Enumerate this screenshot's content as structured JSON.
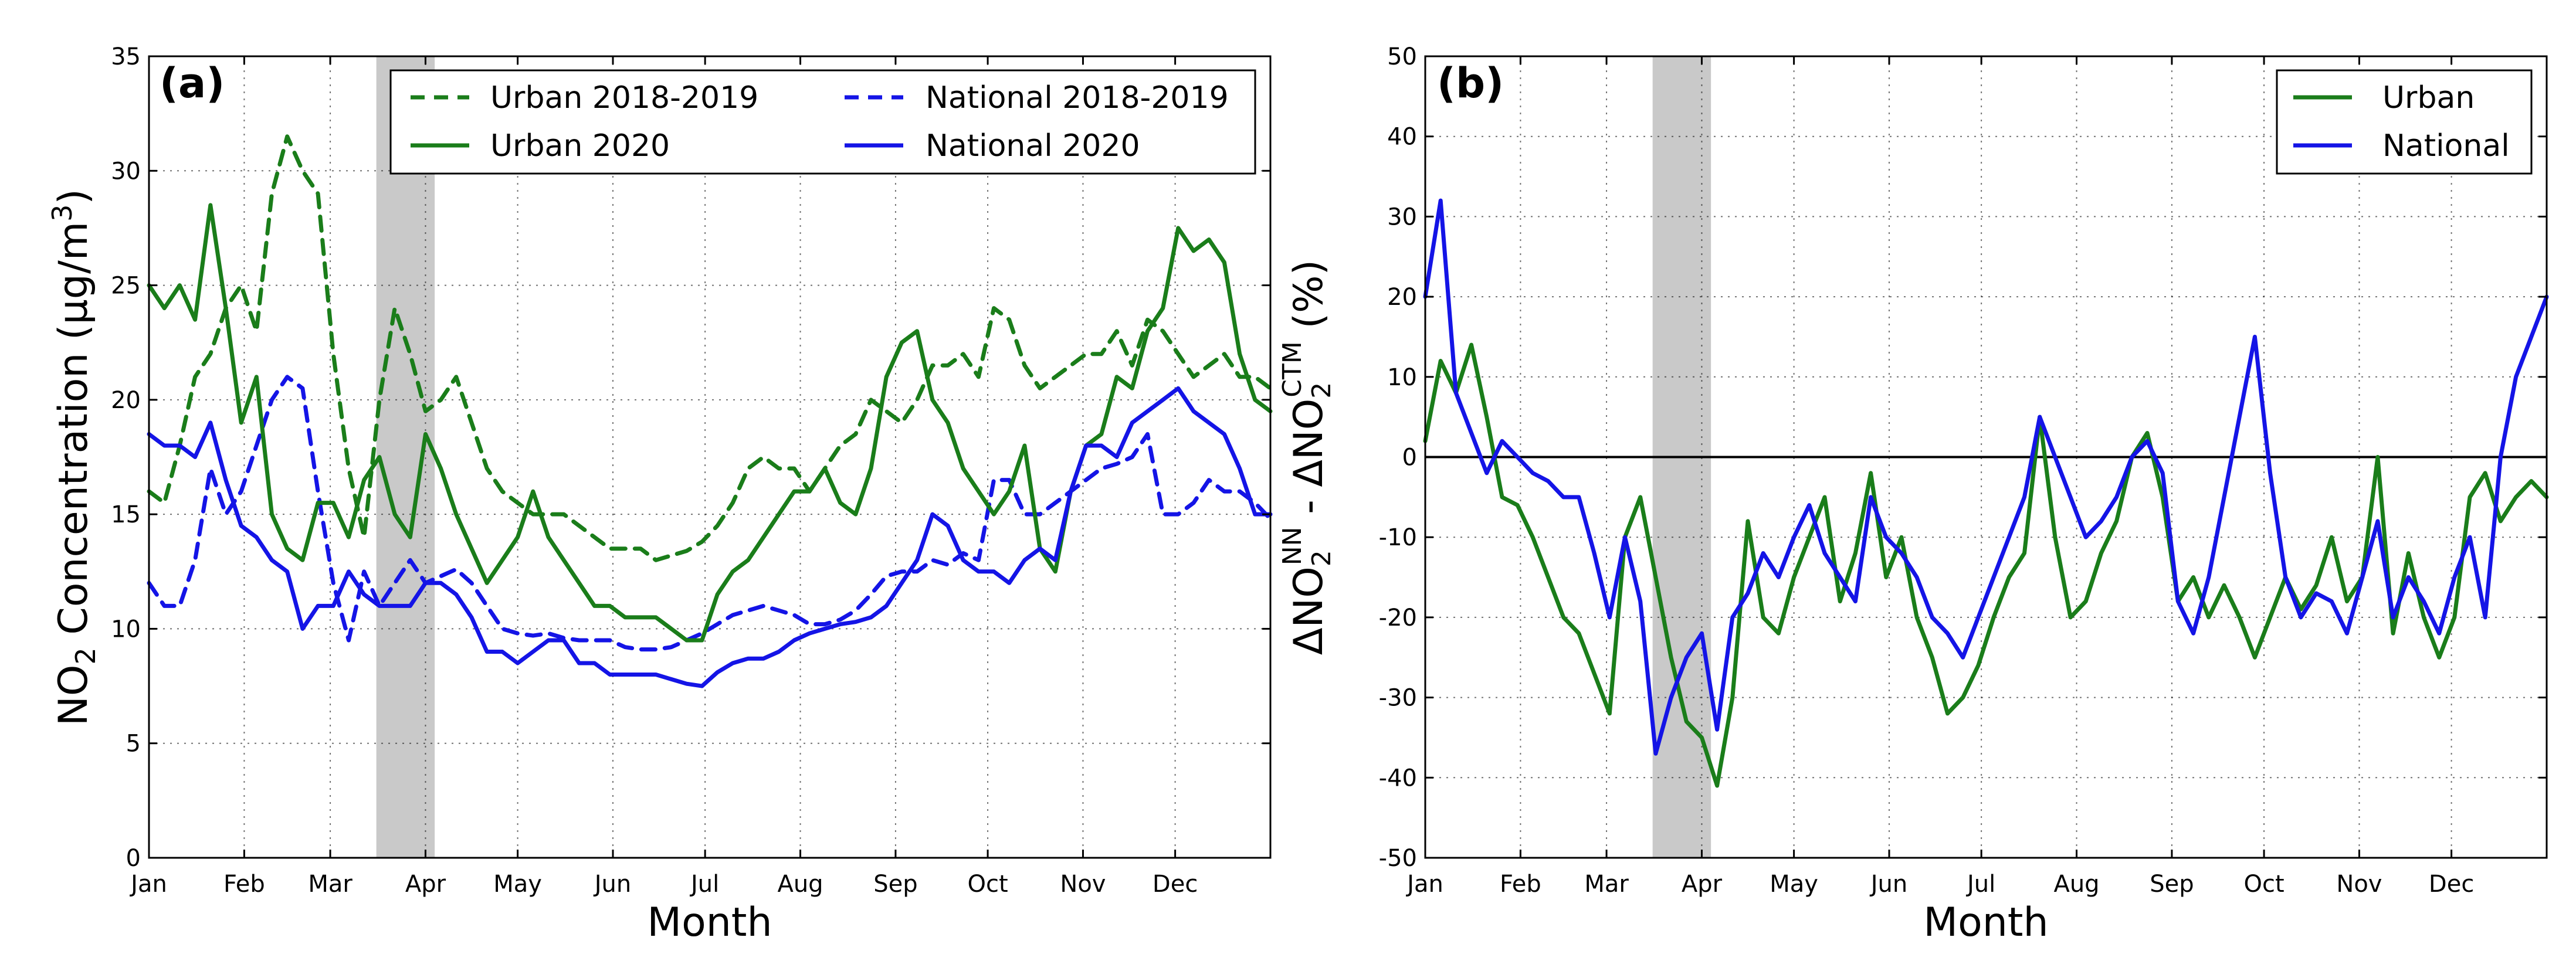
{
  "colors": {
    "urban": "#1a7d1a",
    "national": "#1414e6",
    "shade": "#c9c9c9",
    "zero_line": "#000000"
  },
  "chart_data": [
    {
      "type": "line",
      "panel_label": "(a)",
      "xlabel": "Month",
      "ylabel_parts": {
        "pre": "NO",
        "sub": "2",
        "mid": " Concentration (µg/m",
        "sup": "3",
        "post": ")"
      },
      "months": [
        "Jan",
        "Feb",
        "Mar",
        "Apr",
        "May",
        "Jun",
        "Jul",
        "Aug",
        "Sep",
        "Oct",
        "Nov",
        "Dec"
      ],
      "xlim": [
        0,
        365
      ],
      "ylim": [
        0,
        35
      ],
      "yticks": [
        0,
        5,
        10,
        15,
        20,
        25,
        30,
        35
      ],
      "shaded_period": [
        74,
        93
      ],
      "series": [
        {
          "key": "urban_1819",
          "name": "Urban 2018-2019",
          "color_key": "urban",
          "dashed": true,
          "x": [
            0,
            5,
            10,
            15,
            20,
            25,
            30,
            35,
            40,
            45,
            50,
            55,
            60,
            65,
            70,
            75,
            80,
            85,
            90,
            95,
            100,
            105,
            110,
            115,
            120,
            125,
            130,
            135,
            140,
            145,
            150,
            155,
            160,
            165,
            170,
            175,
            180,
            185,
            190,
            195,
            200,
            205,
            210,
            215,
            220,
            225,
            230,
            235,
            240,
            245,
            250,
            255,
            260,
            265,
            270,
            275,
            280,
            285,
            290,
            295,
            300,
            305,
            310,
            315,
            320,
            325,
            330,
            335,
            340,
            345,
            350,
            355,
            360,
            365
          ],
          "y": [
            16,
            15.5,
            18,
            21,
            22,
            24,
            25,
            23,
            29,
            31.5,
            30,
            29,
            22,
            17,
            14,
            20,
            24,
            22,
            19.5,
            20,
            21,
            19,
            17,
            16,
            15.5,
            15,
            15,
            15,
            14.5,
            14,
            13.5,
            13.5,
            13.5,
            13,
            13.2,
            13.4,
            13.8,
            14.5,
            15.5,
            17,
            17.5,
            17,
            17,
            16,
            17,
            18,
            18.5,
            20,
            19.5,
            19,
            20,
            21.5,
            21.5,
            22,
            21,
            24,
            23.5,
            21.5,
            20.5,
            21,
            21.5,
            22,
            22,
            23,
            21.5,
            23.5,
            23,
            22,
            21,
            21.5,
            22,
            21,
            21,
            20.5
          ]
        },
        {
          "key": "urban_2020",
          "name": "Urban 2020",
          "color_key": "urban",
          "dashed": false,
          "x": [
            0,
            5,
            10,
            15,
            20,
            25,
            30,
            35,
            40,
            45,
            50,
            55,
            60,
            65,
            70,
            75,
            80,
            85,
            90,
            95,
            100,
            105,
            110,
            115,
            120,
            125,
            130,
            135,
            140,
            145,
            150,
            155,
            160,
            165,
            170,
            175,
            180,
            185,
            190,
            195,
            200,
            205,
            210,
            215,
            220,
            225,
            230,
            235,
            240,
            245,
            250,
            255,
            260,
            265,
            270,
            275,
            280,
            285,
            290,
            295,
            300,
            305,
            310,
            315,
            320,
            325,
            330,
            335,
            340,
            345,
            350,
            355,
            360,
            365
          ],
          "y": [
            25,
            24,
            25,
            23.5,
            28.5,
            24,
            19,
            21,
            15,
            13.5,
            13,
            15.5,
            15.5,
            14,
            16.5,
            17.5,
            15,
            14,
            18.5,
            17,
            15,
            13.5,
            12,
            13,
            14,
            16,
            14,
            13,
            12,
            11,
            11,
            10.5,
            10.5,
            10.5,
            10,
            9.5,
            9.5,
            11.5,
            12.5,
            13,
            14,
            15,
            16,
            16,
            17,
            15.5,
            15,
            17,
            21,
            22.5,
            23,
            20,
            19,
            17,
            16,
            15,
            16,
            18,
            13.5,
            12.5,
            16,
            18,
            18.5,
            21,
            20.5,
            23,
            24,
            27.5,
            26.5,
            27,
            26,
            22,
            20,
            19.5
          ]
        },
        {
          "key": "national_1819",
          "name": "National 2018-2019",
          "color_key": "national",
          "dashed": true,
          "x": [
            0,
            5,
            10,
            15,
            20,
            25,
            30,
            35,
            40,
            45,
            50,
            55,
            60,
            65,
            70,
            75,
            80,
            85,
            90,
            95,
            100,
            105,
            110,
            115,
            120,
            125,
            130,
            135,
            140,
            145,
            150,
            155,
            160,
            165,
            170,
            175,
            180,
            185,
            190,
            195,
            200,
            205,
            210,
            215,
            220,
            225,
            230,
            235,
            240,
            245,
            250,
            255,
            260,
            265,
            270,
            275,
            280,
            285,
            290,
            295,
            300,
            305,
            310,
            315,
            320,
            325,
            330,
            335,
            340,
            345,
            350,
            355,
            360,
            365
          ],
          "y": [
            12,
            11,
            11,
            13,
            17,
            15,
            16,
            18,
            20,
            21,
            20.5,
            16,
            12,
            9.5,
            12.5,
            11,
            12,
            13,
            12,
            12.3,
            12.6,
            12,
            11,
            10,
            9.8,
            9.7,
            9.8,
            9.6,
            9.5,
            9.5,
            9.5,
            9.2,
            9.1,
            9.1,
            9.2,
            9.5,
            9.8,
            10.2,
            10.6,
            10.8,
            11,
            10.8,
            10.6,
            10.2,
            10.2,
            10.4,
            10.8,
            11.5,
            12.3,
            12.5,
            12.5,
            13,
            12.8,
            13.3,
            13,
            16.5,
            16.5,
            15,
            15,
            15.5,
            16,
            16.5,
            17,
            17.2,
            17.5,
            18.5,
            15,
            15,
            15.5,
            16.5,
            16,
            16,
            15.5,
            14.8
          ]
        },
        {
          "key": "national_2020",
          "name": "National 2020",
          "color_key": "national",
          "dashed": false,
          "x": [
            0,
            5,
            10,
            15,
            20,
            25,
            30,
            35,
            40,
            45,
            50,
            55,
            60,
            65,
            70,
            75,
            80,
            85,
            90,
            95,
            100,
            105,
            110,
            115,
            120,
            125,
            130,
            135,
            140,
            145,
            150,
            155,
            160,
            165,
            170,
            175,
            180,
            185,
            190,
            195,
            200,
            205,
            210,
            215,
            220,
            225,
            230,
            235,
            240,
            245,
            250,
            255,
            260,
            265,
            270,
            275,
            280,
            285,
            290,
            295,
            300,
            305,
            310,
            315,
            320,
            325,
            330,
            335,
            340,
            345,
            350,
            355,
            360,
            365
          ],
          "y": [
            18.5,
            18,
            18,
            17.5,
            19,
            16.5,
            14.5,
            14,
            13,
            12.5,
            10,
            11,
            11,
            12.5,
            11.5,
            11,
            11,
            11,
            12,
            12,
            11.5,
            10.5,
            9,
            9,
            8.5,
            9,
            9.5,
            9.5,
            8.5,
            8.5,
            8,
            8,
            8,
            8,
            7.8,
            7.6,
            7.5,
            8.1,
            8.5,
            8.7,
            8.7,
            9,
            9.5,
            9.8,
            10,
            10.2,
            10.3,
            10.5,
            11,
            12,
            13,
            15,
            14.5,
            13,
            12.5,
            12.5,
            12,
            13,
            13.5,
            13,
            16,
            18,
            18,
            17.5,
            19,
            19.5,
            20,
            20.5,
            19.5,
            19,
            18.5,
            17,
            15,
            15
          ]
        }
      ],
      "legend": {
        "urban_1819": "Urban 2018-2019",
        "urban_2020": "Urban 2020",
        "national_1819": "National 2018-2019",
        "national_2020": "National 2020"
      }
    },
    {
      "type": "line",
      "panel_label": "(b)",
      "xlabel": "Month",
      "ylabel_parts": {
        "a": "ΔNO",
        "a_sub": "2",
        "a_sup": "NN",
        "sep": " - ",
        "b": "ΔNO",
        "b_sub": "2",
        "b_sup": "CTM",
        "unit": " (%)"
      },
      "months": [
        "Jan",
        "Feb",
        "Mar",
        "Apr",
        "May",
        "Jun",
        "Jul",
        "Aug",
        "Sep",
        "Oct",
        "Nov",
        "Dec"
      ],
      "xlim": [
        0,
        365
      ],
      "ylim": [
        -50,
        50
      ],
      "yticks": [
        -50,
        -40,
        -30,
        -20,
        -10,
        0,
        10,
        20,
        30,
        40,
        50
      ],
      "zero_line": 0,
      "shaded_period": [
        74,
        93
      ],
      "series": [
        {
          "key": "urban",
          "name": "Urban",
          "color_key": "urban",
          "dashed": false,
          "x": [
            0,
            5,
            10,
            15,
            20,
            25,
            30,
            35,
            40,
            45,
            50,
            55,
            60,
            65,
            70,
            75,
            80,
            85,
            90,
            95,
            100,
            105,
            110,
            115,
            120,
            125,
            130,
            135,
            140,
            145,
            150,
            155,
            160,
            165,
            170,
            175,
            180,
            185,
            190,
            195,
            200,
            205,
            210,
            215,
            220,
            225,
            230,
            235,
            240,
            245,
            250,
            255,
            260,
            265,
            270,
            275,
            280,
            285,
            290,
            295,
            300,
            305,
            310,
            315,
            320,
            325,
            330,
            335,
            340,
            345,
            350,
            355,
            360,
            365
          ],
          "y": [
            2,
            12,
            8,
            14,
            5,
            -5,
            -6,
            -10,
            -15,
            -20,
            -22,
            -27,
            -32,
            -10,
            -5,
            -15,
            -25,
            -33,
            -35,
            -41,
            -30,
            -8,
            -20,
            -22,
            -15,
            -10,
            -5,
            -18,
            -12,
            -2,
            -15,
            -10,
            -20,
            -25,
            -32,
            -30,
            -26,
            -20,
            -15,
            -12,
            5,
            -10,
            -20,
            -18,
            -12,
            -8,
            0,
            3,
            -5,
            -18,
            -15,
            -20,
            -16,
            -20,
            -25,
            -20,
            -15,
            -19,
            -16,
            -10,
            -18,
            -15,
            0,
            -22,
            -12,
            -20,
            -25,
            -20,
            -5,
            -2,
            -8,
            -5,
            -3,
            -5
          ]
        },
        {
          "key": "national",
          "name": "National",
          "color_key": "national",
          "dashed": false,
          "x": [
            0,
            5,
            10,
            15,
            20,
            25,
            30,
            35,
            40,
            45,
            50,
            55,
            60,
            65,
            70,
            75,
            80,
            85,
            90,
            95,
            100,
            105,
            110,
            115,
            120,
            125,
            130,
            135,
            140,
            145,
            150,
            155,
            160,
            165,
            170,
            175,
            180,
            185,
            190,
            195,
            200,
            205,
            210,
            215,
            220,
            225,
            230,
            235,
            240,
            245,
            250,
            255,
            260,
            265,
            270,
            275,
            280,
            285,
            290,
            295,
            300,
            305,
            310,
            315,
            320,
            325,
            330,
            335,
            340,
            345,
            350,
            355,
            360,
            365
          ],
          "y": [
            20,
            32,
            8,
            3,
            -2,
            2,
            0,
            -2,
            -3,
            -5,
            -5,
            -12,
            -20,
            -10,
            -18,
            -37,
            -30,
            -25,
            -22,
            -34,
            -20,
            -17,
            -12,
            -15,
            -10,
            -6,
            -12,
            -15,
            -18,
            -5,
            -10,
            -12,
            -15,
            -20,
            -22,
            -25,
            -20,
            -15,
            -10,
            -5,
            5,
            0,
            -5,
            -10,
            -8,
            -5,
            0,
            2,
            -2,
            -18,
            -22,
            -15,
            -5,
            5,
            15,
            -2,
            -15,
            -20,
            -17,
            -18,
            -22,
            -15,
            -8,
            -20,
            -15,
            -18,
            -22,
            -15,
            -10,
            -20,
            0,
            10,
            15,
            20
          ]
        }
      ],
      "legend": {
        "urban": "Urban",
        "national": "National"
      }
    }
  ]
}
